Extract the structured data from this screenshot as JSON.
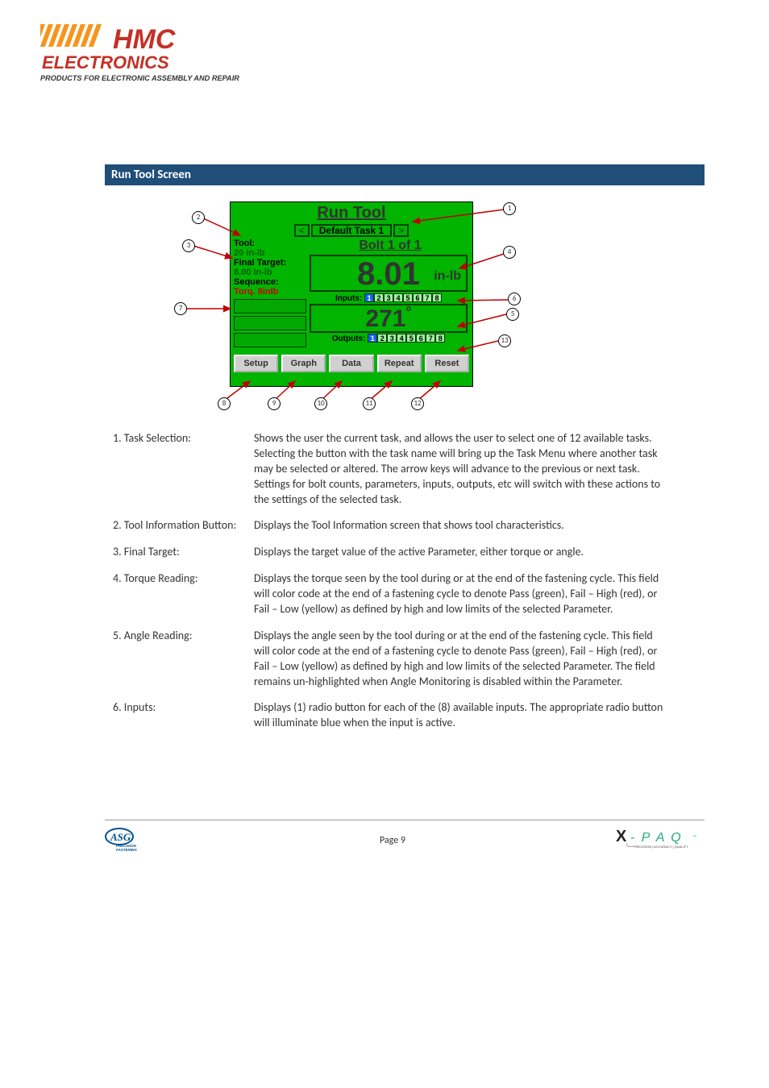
{
  "header": {
    "logo_alt": "HMC Electronics — Products for Electronic Assembly and Repair"
  },
  "section_title": "Run Tool Screen",
  "screen": {
    "title": "Run Tool",
    "task_prev": "<",
    "task_name": "Default Task 1",
    "task_next": ">",
    "tool_label": "Tool:",
    "tool_value": "20 in-lb",
    "final_target_label": "Final Target:",
    "final_target_value": "8.00 in-lb",
    "sequence_label": "Sequence:",
    "sequence_value": "Torq. 8inlb",
    "bolt_text": "Bolt 1 of 1",
    "torque_value": "8.01",
    "torque_unit": "in-lb",
    "inputs_label": "Inputs:",
    "io_numbers": [
      "1",
      "2",
      "3",
      "4",
      "5",
      "6",
      "7",
      "8"
    ],
    "input_active": [
      true,
      false,
      false,
      false,
      false,
      false,
      false,
      false
    ],
    "angle_value": "271",
    "angle_unit": "°",
    "outputs_label": "Outputs:",
    "output_active": [
      true,
      false,
      false,
      false,
      false,
      false,
      false,
      false
    ],
    "buttons": {
      "setup": "Setup",
      "graph": "Graph",
      "data": "Data",
      "repeat": "Repeat",
      "reset": "Reset"
    }
  },
  "callouts": [
    "1",
    "2",
    "3",
    "4",
    "5",
    "6",
    "7",
    "8",
    "9",
    "10",
    "11",
    "12",
    "13"
  ],
  "items": [
    {
      "num": "1.",
      "label": "Task Selection:",
      "text": "Shows the user the current task, and allows the user to select one of 12 available tasks.  Selecting the button with the task name will bring up the Task Menu where another task may be selected or altered.  The arrow keys will advance to the previous or next task.  Settings for bolt counts, parameters, inputs, outputs, etc will switch with these actions to the settings of the selected task."
    },
    {
      "num": "2.",
      "label": "Tool Information Button:",
      "text": "Displays the Tool Information screen that shows tool characteristics."
    },
    {
      "num": "3.",
      "label": "Final Target:",
      "text": "Displays the target value of the active Parameter, either torque or angle."
    },
    {
      "num": "4.",
      "label": "Torque Reading:",
      "text": "Displays the torque seen by the tool during or at the end of the fastening cycle. This field will color code at the end of a fastening cycle to denote Pass (green), Fail – High (red), or Fail – Low (yellow) as defined by high and low limits of the selected Parameter."
    },
    {
      "num": "5.",
      "label": "Angle Reading:",
      "text": "Displays the angle seen by the tool during or at the end of the fastening cycle.  This field will color code at the end of a fastening cycle to denote Pass (green), Fail – High (red), or Fail – Low (yellow) as defined by high and low limits of the selected Parameter.  The field remains un-highlighted when Angle Monitoring is disabled within the Parameter."
    },
    {
      "num": "6.",
      "label": "Inputs:",
      "text": "Displays (1) radio button for each of the (8) available inputs.  The appropriate radio button will illuminate blue when the input is active."
    }
  ],
  "footer": {
    "page": "Page 9",
    "left_logo": "ASG Precision Fastening",
    "right_logo": "X-PAQ Precision | Accuracy | Quality"
  },
  "colors": {
    "title_bg": "#1f4e79",
    "screen_bg": "#00b400",
    "arrow_color": "#c00000"
  }
}
